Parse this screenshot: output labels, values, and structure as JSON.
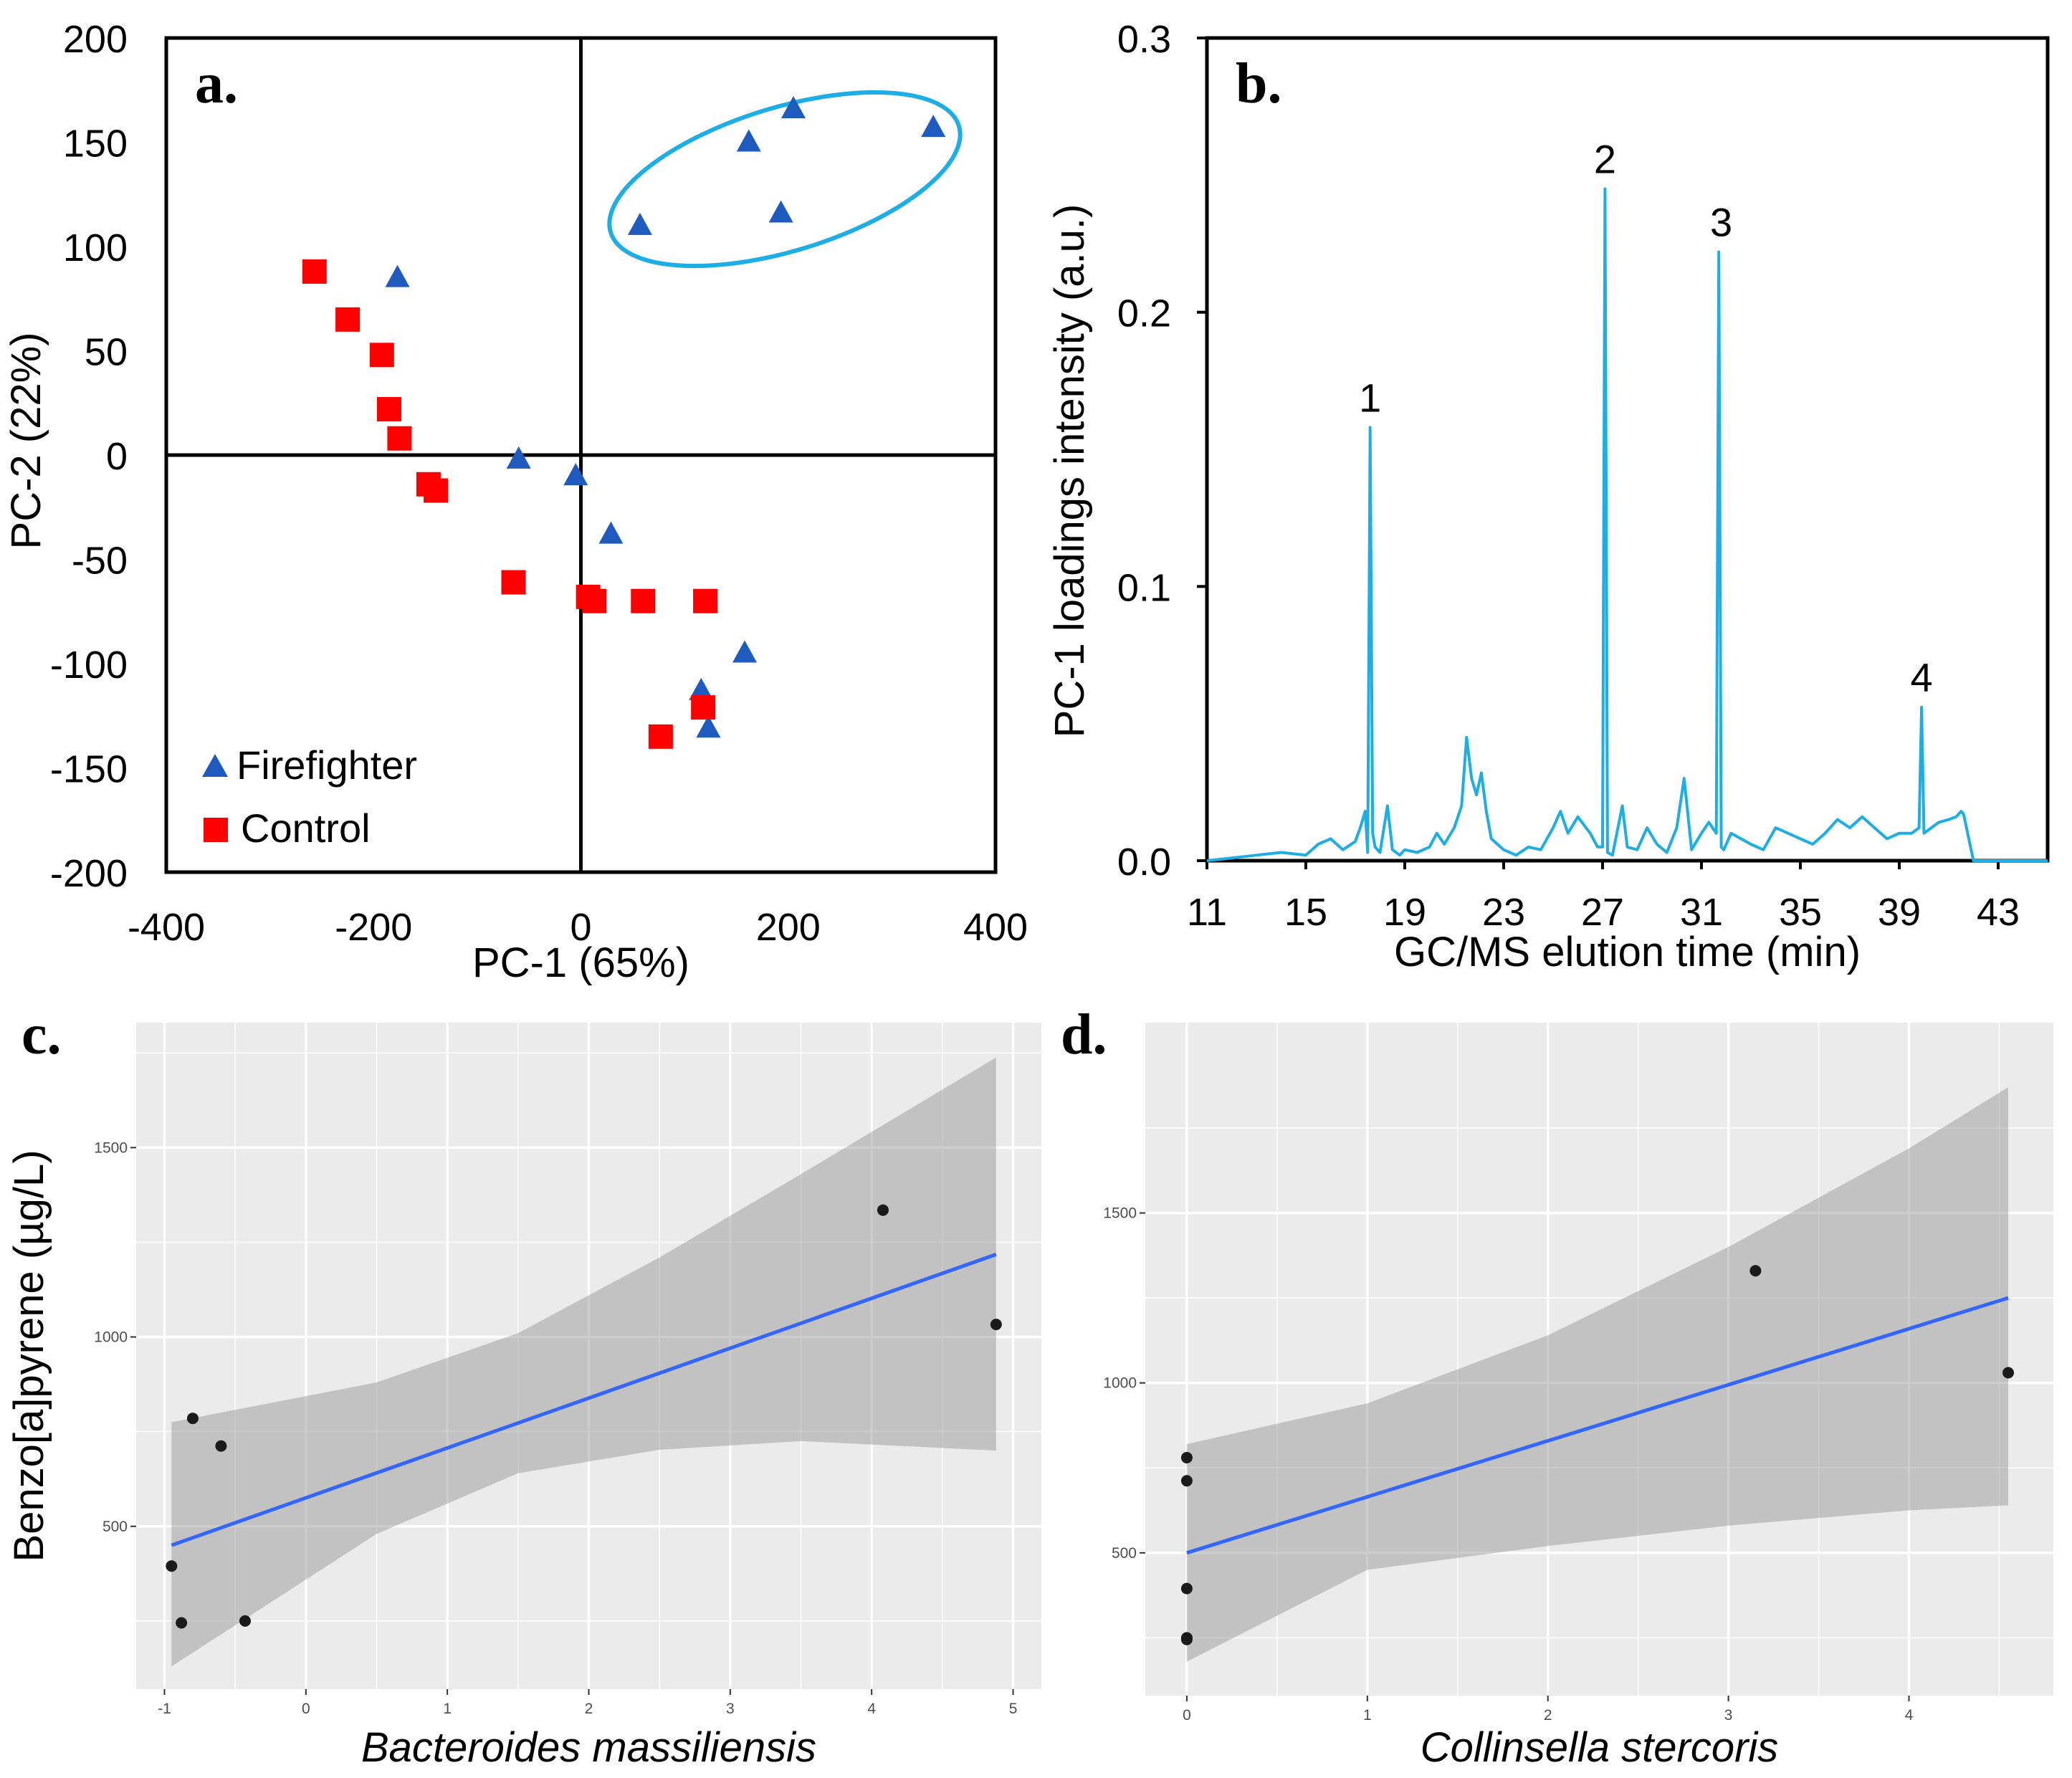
{
  "chart_data": [
    {
      "panel": "a.",
      "type": "scatter",
      "xlabel": "PC-1 (65%)",
      "ylabel": "PC-2 (22%)",
      "xlim": [
        -400,
        400
      ],
      "ylim": [
        -200,
        200
      ],
      "xticks": [
        -400,
        -200,
        0,
        200,
        400
      ],
      "yticks": [
        -200,
        -150,
        -100,
        -50,
        0,
        50,
        100,
        150,
        200
      ],
      "colors": {
        "Firefighter": "#1f5bbf",
        "Control": "#ff0000",
        "cluster": "#1eaee6"
      },
      "series": [
        {
          "name": "Firefighter",
          "marker": "triangle",
          "points": [
            [
              205,
              166
            ],
            [
              162,
              150
            ],
            [
              340,
              157
            ],
            [
              57,
              110
            ],
            [
              193,
              116
            ],
            [
              -177,
              85
            ],
            [
              -60,
              -2
            ],
            [
              -5,
              -10
            ],
            [
              29,
              -38
            ],
            [
              158,
              -95
            ],
            [
              116,
              -113
            ],
            [
              123,
              -131
            ]
          ]
        },
        {
          "name": "Control",
          "marker": "square",
          "points": [
            [
              -257,
              88
            ],
            [
              -225,
              65
            ],
            [
              -192,
              48
            ],
            [
              -185,
              22
            ],
            [
              -175,
              8
            ],
            [
              -147,
              -14
            ],
            [
              -140,
              -17
            ],
            [
              -65,
              -61
            ],
            [
              7,
              -68
            ],
            [
              13,
              -70
            ],
            [
              60,
              -70
            ],
            [
              120,
              -70
            ],
            [
              118,
              -121
            ],
            [
              77,
              -135
            ]
          ]
        }
      ],
      "legend": [
        "Firefighter",
        "Control"
      ],
      "annotation": "ellipse around upper-right Firefighter cluster"
    },
    {
      "panel": "b.",
      "type": "line",
      "xlabel": "GC/MS elution time (min)",
      "ylabel": "PC-1 loadings intensity (a.u.)",
      "xlim": [
        11,
        45
      ],
      "ylim": [
        0,
        0.3
      ],
      "xticks": [
        11,
        15,
        19,
        23,
        27,
        31,
        35,
        39,
        43
      ],
      "yticks": [
        0.0,
        0.1,
        0.2,
        0.3
      ],
      "ytick_labels": [
        "0.0",
        "0.1",
        "0.2",
        "0.3"
      ],
      "color": "#1eaee6",
      "x": [
        11,
        12,
        13,
        14,
        15,
        15.5,
        16,
        16.5,
        17,
        17.2,
        17.4,
        17.5,
        17.6,
        17.7,
        17.8,
        18,
        18.3,
        18.5,
        18.8,
        19,
        19.5,
        20,
        20.3,
        20.6,
        21,
        21.3,
        21.5,
        21.7,
        21.9,
        22.1,
        22.3,
        22.5,
        23,
        23.5,
        24,
        24.5,
        25,
        25.3,
        25.6,
        26,
        26.5,
        26.8,
        27,
        27.1,
        27.2,
        27.4,
        27.8,
        28,
        28.4,
        28.8,
        29.2,
        29.6,
        30,
        30.3,
        30.6,
        31,
        31.3,
        31.6,
        31.7,
        31.8,
        31.9,
        32.2,
        32.6,
        33,
        33.5,
        34,
        34.5,
        35,
        35.5,
        36,
        36.5,
        37,
        37.5,
        38,
        38.5,
        39,
        39.5,
        39.8,
        39.9,
        40,
        40.3,
        40.6,
        41,
        41.3,
        41.5,
        41.6,
        42,
        43,
        44,
        45
      ],
      "y": [
        0.0,
        0.001,
        0.002,
        0.003,
        0.002,
        0.006,
        0.008,
        0.004,
        0.007,
        0.012,
        0.018,
        0.003,
        0.158,
        0.01,
        0.005,
        0.003,
        0.02,
        0.004,
        0.002,
        0.004,
        0.003,
        0.005,
        0.01,
        0.006,
        0.012,
        0.02,
        0.045,
        0.03,
        0.024,
        0.032,
        0.018,
        0.008,
        0.004,
        0.002,
        0.005,
        0.004,
        0.012,
        0.018,
        0.01,
        0.016,
        0.01,
        0.005,
        0.005,
        0.245,
        0.003,
        0.002,
        0.02,
        0.005,
        0.004,
        0.012,
        0.006,
        0.003,
        0.012,
        0.03,
        0.004,
        0.01,
        0.014,
        0.01,
        0.222,
        0.005,
        0.004,
        0.01,
        0.008,
        0.006,
        0.004,
        0.012,
        0.01,
        0.008,
        0.006,
        0.01,
        0.015,
        0.012,
        0.016,
        0.012,
        0.008,
        0.01,
        0.01,
        0.012,
        0.056,
        0.01,
        0.012,
        0.014,
        0.015,
        0.016,
        0.018,
        0.017,
        0.0,
        0.0,
        0.0,
        0.0
      ],
      "peaks": [
        {
          "label": "1",
          "x": 17.6,
          "y": 0.158
        },
        {
          "label": "2",
          "x": 27.1,
          "y": 0.245
        },
        {
          "label": "3",
          "x": 31.8,
          "y": 0.222
        },
        {
          "label": "4",
          "x": 39.9,
          "y": 0.056
        }
      ]
    },
    {
      "panel": "c.",
      "type": "scatter",
      "xlabel": "Bacteroides massiliensis",
      "ylabel": "Benzo[a]pyrene (µg/L)",
      "xlim": [
        -1.2,
        5.2
      ],
      "ylim": [
        70,
        1830
      ],
      "xticks": [
        -1,
        0,
        1,
        2,
        3,
        4,
        5
      ],
      "yticks": [
        500,
        1000,
        1500
      ],
      "points": [
        [
          -0.95,
          395
        ],
        [
          -0.88,
          245
        ],
        [
          -0.8,
          785
        ],
        [
          -0.6,
          712
        ],
        [
          -0.43,
          250
        ],
        [
          4.08,
          1335
        ],
        [
          4.88,
          1033
        ]
      ],
      "fit": {
        "x0": -0.95,
        "y0": 450,
        "x1": 4.88,
        "y1": 1218
      },
      "ci_band": {
        "x": [
          -0.95,
          0.5,
          1.5,
          2.5,
          3.5,
          4.88
        ],
        "lower": [
          130,
          480,
          640,
          702,
          725,
          700
        ],
        "upper": [
          775,
          880,
          1010,
          1210,
          1430,
          1738
        ]
      },
      "fit_color": "#3366ff"
    },
    {
      "panel": "d.",
      "type": "scatter",
      "xlabel": "Collinsella stercoris",
      "ylabel": "",
      "xlim": [
        -0.23,
        4.8
      ],
      "ylim": [
        80,
        2060
      ],
      "xticks": [
        0,
        1,
        2,
        3,
        4
      ],
      "yticks": [
        500,
        1000,
        1500
      ],
      "points": [
        [
          0,
          780
        ],
        [
          0,
          712
        ],
        [
          0,
          395
        ],
        [
          0,
          250
        ],
        [
          0,
          245
        ],
        [
          3.15,
          1330
        ],
        [
          4.55,
          1030
        ]
      ],
      "fit": {
        "x0": 0,
        "y0": 500,
        "x1": 4.55,
        "y1": 1250
      },
      "ci_band": {
        "x": [
          0,
          1,
          2,
          3,
          4,
          4.55
        ],
        "lower": [
          180,
          450,
          520,
          580,
          625,
          640
        ],
        "upper": [
          820,
          940,
          1140,
          1400,
          1690,
          1870
        ]
      },
      "fit_color": "#3366ff"
    }
  ]
}
